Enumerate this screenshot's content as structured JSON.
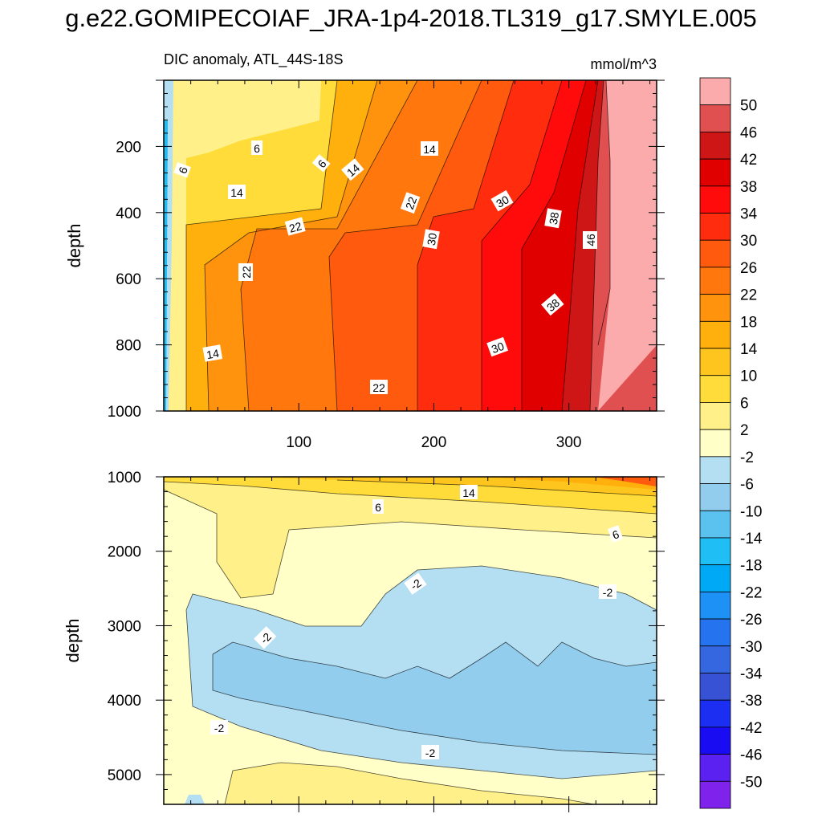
{
  "chart_data": {
    "title": "g.e22.GOMIPECOIAF_JRA-1p4-2018.TL319_g17.SMYLE.005",
    "subtitle_left": "DIC anomaly, ATL_44S-18S",
    "units": "mmol/m^3",
    "type": "heatmap",
    "colorbar": {
      "levels": [
        "50",
        "46",
        "42",
        "38",
        "34",
        "30",
        "26",
        "22",
        "18",
        "14",
        "10",
        "6",
        "2",
        "-2",
        "-6",
        "-10",
        "-14",
        "-18",
        "-22",
        "-26",
        "-30",
        "-34",
        "-38",
        "-42",
        "-46",
        "-50"
      ],
      "colors": [
        "#fbabab",
        "#e15050",
        "#cf1616",
        "#e00000",
        "#ff0b0b",
        "#ff2d0d",
        "#ff5a0d",
        "#ff770d",
        "#ff930d",
        "#ffb00d",
        "#ffc51f",
        "#ffdc3a",
        "#fff08a",
        "#ffffc7",
        "#b4dff3",
        "#92cdee",
        "#5bc2f0",
        "#1fbef5",
        "#00a9f5",
        "#1d91f5",
        "#2573ef",
        "#3568e0",
        "#3852d6",
        "#1b2ef2",
        "#1a0cf2",
        "#5b21f1",
        "#7e22ec"
      ]
    },
    "panels": [
      {
        "name": "upper",
        "xlabel": "",
        "ylabel": "depth",
        "xlim": [
          0,
          365
        ],
        "ylim": [
          1000,
          0
        ],
        "x_ticks": [
          "100",
          "200",
          "300"
        ],
        "y_ticks": [
          "200",
          "400",
          "600",
          "800",
          "1000"
        ],
        "contour_labels": [
          "6",
          "6",
          "6",
          "14",
          "14",
          "14",
          "22",
          "22",
          "22",
          "30",
          "30",
          "30",
          "38",
          "38",
          "46",
          "14",
          "22"
        ]
      },
      {
        "name": "lower",
        "xlabel": "",
        "ylabel": "depth",
        "xlim": [
          0,
          365
        ],
        "ylim": [
          5400,
          1000
        ],
        "y_ticks": [
          "1000",
          "2000",
          "3000",
          "4000",
          "5000"
        ],
        "contour_labels": [
          "14",
          "6",
          "6",
          "-2",
          "-2",
          "-2",
          "-2",
          "-2"
        ]
      }
    ]
  }
}
